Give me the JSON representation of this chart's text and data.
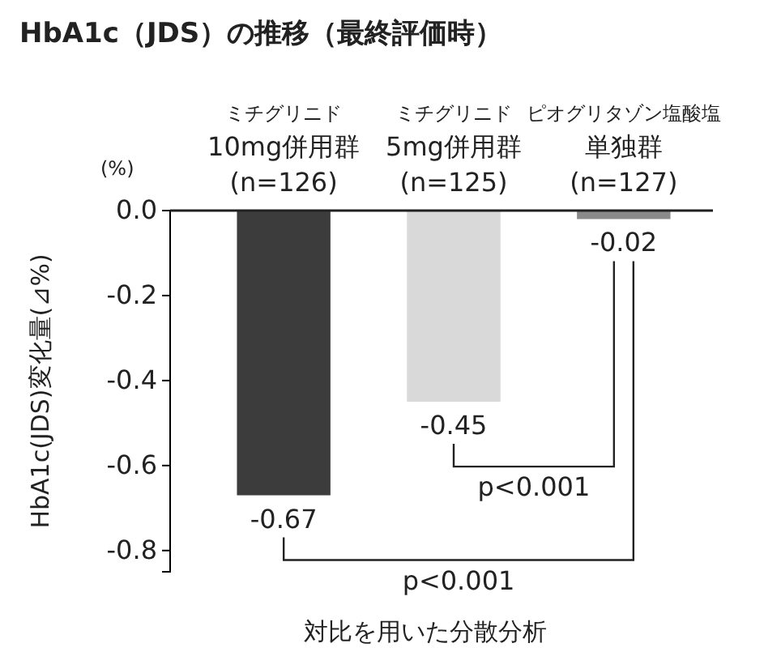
{
  "chart_data": {
    "type": "bar",
    "title": "HbA1c（JDS）の推移（最終評価時）",
    "categories": [
      "ミチグリニド\n10mg併用群\n(n=126)",
      "ミチグリニド\n5mg併用群\n(n=125)",
      "ピオグリタゾン塩酸塩単独群\n(n=127)"
    ],
    "values": [
      -0.67,
      -0.45,
      -0.02
    ],
    "colors": [
      "#3c3c3c",
      "#d9d9d9",
      "#8a8a8a"
    ],
    "ylim": [
      -0.85,
      0
    ],
    "yticks": [
      {
        "value": 0,
        "label": "0.0"
      },
      -0.2,
      -0.4,
      -0.6,
      -0.8
    ],
    "ylabel": "HbA1c(JDS)変化量(⊿%)",
    "xlabel": "対比を用いた分散分析",
    "data_labels": true,
    "annotations": [
      "(%)",
      "p<0.001",
      "p<0.001"
    ]
  }
}
